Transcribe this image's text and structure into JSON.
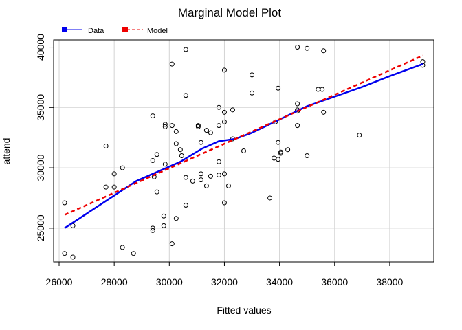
{
  "chart_data": {
    "type": "scatter",
    "title": "Marginal Model Plot",
    "xlabel": "Fitted values",
    "ylabel": "attend",
    "xlim": [
      25800,
      39600
    ],
    "ylim": [
      22200,
      40600
    ],
    "xticks": [
      26000,
      28000,
      30000,
      32000,
      34000,
      36000,
      38000
    ],
    "yticks": [
      25000,
      30000,
      35000,
      40000
    ],
    "grid": true,
    "legend_position": "top-left",
    "legend": [
      {
        "label": "Data",
        "color": "#0000ee",
        "style": "solid"
      },
      {
        "label": "Model",
        "color": "#ee0000",
        "style": "dashed"
      }
    ],
    "points": [
      [
        26200,
        27100
      ],
      [
        26200,
        22900
      ],
      [
        26500,
        25200
      ],
      [
        26500,
        22600
      ],
      [
        27700,
        31800
      ],
      [
        27700,
        28400
      ],
      [
        28000,
        29500
      ],
      [
        28000,
        28400
      ],
      [
        28300,
        30000
      ],
      [
        28300,
        23400
      ],
      [
        28700,
        22900
      ],
      [
        29400,
        34300
      ],
      [
        29400,
        30600
      ],
      [
        29450,
        29250
      ],
      [
        29400,
        25000
      ],
      [
        29400,
        24800
      ],
      [
        29550,
        31100
      ],
      [
        29550,
        28000
      ],
      [
        29800,
        26000
      ],
      [
        29800,
        25200
      ],
      [
        29850,
        33600
      ],
      [
        29850,
        33400
      ],
      [
        29850,
        30300
      ],
      [
        30100,
        38600
      ],
      [
        30100,
        33500
      ],
      [
        30100,
        23700
      ],
      [
        30250,
        33000
      ],
      [
        30250,
        32000
      ],
      [
        30250,
        25800
      ],
      [
        30400,
        31500
      ],
      [
        30450,
        31000
      ],
      [
        30600,
        39800
      ],
      [
        30600,
        36000
      ],
      [
        30600,
        29200
      ],
      [
        30600,
        26900
      ],
      [
        30850,
        28900
      ],
      [
        31050,
        33500
      ],
      [
        31050,
        33400
      ],
      [
        31150,
        32100
      ],
      [
        31150,
        29500
      ],
      [
        31150,
        29000
      ],
      [
        31350,
        33100
      ],
      [
        31350,
        28500
      ],
      [
        31500,
        32900
      ],
      [
        31500,
        29300
      ],
      [
        31800,
        35000
      ],
      [
        31800,
        33500
      ],
      [
        31800,
        30500
      ],
      [
        31800,
        29400
      ],
      [
        32000,
        38100
      ],
      [
        32000,
        34600
      ],
      [
        32000,
        33800
      ],
      [
        32000,
        29500
      ],
      [
        32000,
        27100
      ],
      [
        32150,
        28500
      ],
      [
        32300,
        34800
      ],
      [
        32300,
        32400
      ],
      [
        32700,
        31400
      ],
      [
        33000,
        37700
      ],
      [
        33000,
        36200
      ],
      [
        33650,
        27500
      ],
      [
        33800,
        30800
      ],
      [
        33850,
        33800
      ],
      [
        33950,
        36600
      ],
      [
        33950,
        32100
      ],
      [
        33950,
        30700
      ],
      [
        34050,
        31300
      ],
      [
        34050,
        31200
      ],
      [
        34300,
        31500
      ],
      [
        34650,
        40000
      ],
      [
        34650,
        35300
      ],
      [
        34650,
        34800
      ],
      [
        34650,
        34700
      ],
      [
        34650,
        33500
      ],
      [
        35000,
        39900
      ],
      [
        35000,
        31000
      ],
      [
        35400,
        36500
      ],
      [
        35550,
        36500
      ],
      [
        35600,
        39700
      ],
      [
        35600,
        34600
      ],
      [
        36900,
        32700
      ],
      [
        39200,
        38800
      ],
      [
        39200,
        38500
      ]
    ],
    "series": [
      {
        "name": "Data",
        "x": [
          26200,
          27000,
          28000,
          28800,
          29600,
          30400,
          31200,
          31800,
          32400,
          33000,
          34000,
          35000,
          36000,
          37000,
          38000,
          39200
        ],
        "y": [
          25000,
          26200,
          27700,
          28900,
          29700,
          30500,
          31600,
          32200,
          32400,
          32900,
          34000,
          35100,
          35900,
          36700,
          37600,
          38600
        ]
      },
      {
        "name": "Model",
        "x": [
          26200,
          39200
        ],
        "y": [
          26100,
          39300
        ]
      }
    ]
  }
}
